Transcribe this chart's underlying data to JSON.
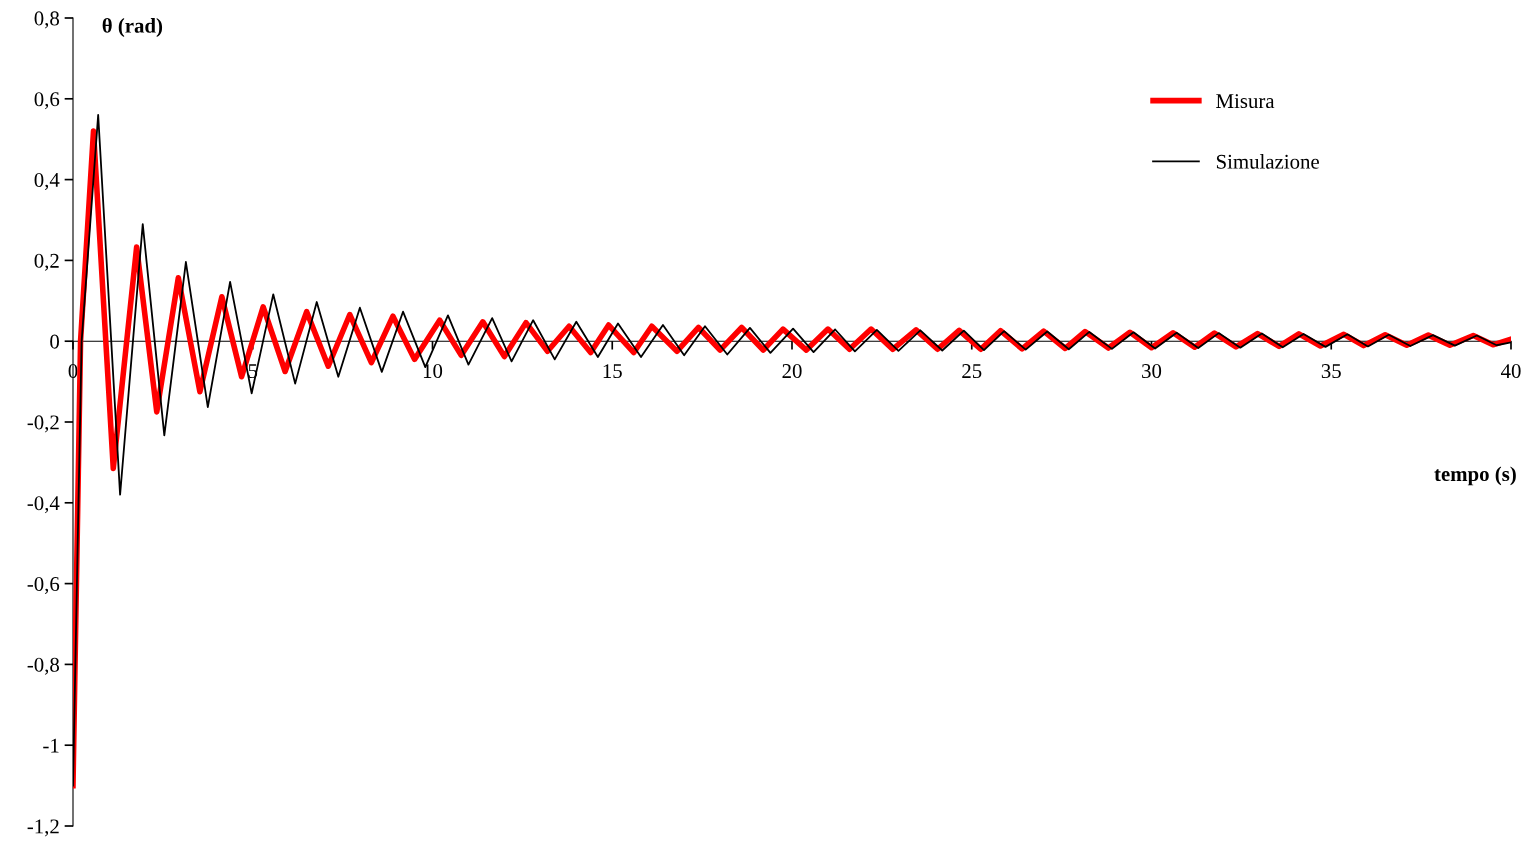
{
  "chart_data": {
    "type": "line",
    "xlabel": "tempo (s)",
    "ylabel": "θ (rad)",
    "xlim": [
      0,
      40
    ],
    "xticks": [
      0,
      5,
      10,
      15,
      20,
      25,
      30,
      35,
      40
    ],
    "ylim": [
      -1.2,
      0.8
    ],
    "yticks": [
      {
        "value": -1.2,
        "label": "-1,2"
      },
      {
        "value": -1,
        "label": "-1"
      },
      {
        "value": -0.8,
        "label": "-0,8"
      },
      {
        "value": -0.6,
        "label": "-0,6"
      },
      {
        "value": -0.4,
        "label": "-0,4"
      },
      {
        "value": -0.2,
        "label": "-0,2"
      },
      0,
      {
        "value": 0.2,
        "label": "0,2"
      },
      {
        "value": 0.4,
        "label": "0,4"
      },
      {
        "value": 0.6,
        "label": "0,6"
      },
      {
        "value": 0.8,
        "label": "0,8"
      }
    ],
    "grid": false,
    "legend": "top right",
    "marker": "none",
    "line_style": "solid",
    "series": [
      {
        "name": "Misura",
        "color": "#ff0000",
        "x": [
          0,
          0.21,
          0.57,
          1.12,
          1.77,
          2.33,
          2.93,
          3.53,
          4.14,
          4.69,
          5.29,
          5.9,
          6.5,
          7.1,
          7.7,
          8.3,
          8.9,
          9.5,
          10.2,
          10.8,
          11.4,
          12.0,
          12.6,
          13.2,
          13.8,
          14.4,
          14.9,
          15.6,
          16.1,
          16.8,
          17.4,
          18.0,
          18.6,
          19.2,
          19.75,
          20.4,
          21.0,
          21.6,
          22.2,
          22.8,
          23.45,
          24.05,
          24.65,
          25.25,
          25.8,
          26.4,
          27.0,
          27.6,
          28.15,
          28.8,
          29.4,
          30.0,
          30.6,
          31.2,
          31.75,
          32.35,
          32.95,
          33.55,
          34.1,
          34.7,
          35.35,
          35.9,
          36.5,
          37.1,
          37.7,
          38.3,
          38.95,
          39.5,
          40
        ],
        "values": [
          -1.1,
          0,
          0.52,
          -0.315,
          0.233,
          -0.175,
          0.157,
          -0.125,
          0.11,
          -0.088,
          0.085,
          -0.075,
          0.073,
          -0.062,
          0.066,
          -0.053,
          0.062,
          -0.045,
          0.052,
          -0.035,
          0.048,
          -0.038,
          0.046,
          -0.025,
          0.037,
          -0.028,
          0.04,
          -0.028,
          0.037,
          -0.025,
          0.034,
          -0.022,
          0.034,
          -0.022,
          0.03,
          -0.022,
          0.03,
          -0.02,
          0.03,
          -0.02,
          0.028,
          -0.02,
          0.027,
          -0.02,
          0.026,
          -0.019,
          0.025,
          -0.018,
          0.024,
          -0.017,
          0.022,
          -0.016,
          0.021,
          -0.015,
          0.02,
          -0.014,
          0.019,
          -0.013,
          0.018,
          -0.012,
          0.017,
          -0.011,
          0.016,
          -0.01,
          0.015,
          -0.01,
          0.014,
          -0.009,
          0.005
        ]
      },
      {
        "name": "Simulazione",
        "color": "#000000",
        "x": [
          0,
          0.24,
          0.7,
          1.31,
          1.94,
          2.54,
          3.14,
          3.75,
          4.37,
          4.97,
          5.57,
          6.18,
          6.78,
          7.38,
          7.98,
          8.59,
          9.18,
          9.8,
          10.43,
          11.0,
          11.66,
          12.2,
          12.8,
          13.4,
          14.0,
          14.6,
          15.16,
          15.8,
          16.41,
          17.0,
          17.58,
          18.2,
          18.83,
          19.4,
          20.03,
          20.6,
          21.2,
          21.75,
          22.36,
          22.96,
          23.57,
          24.18,
          24.78,
          25.34,
          25.9,
          26.5,
          27.1,
          27.7,
          28.27,
          28.9,
          29.5,
          30.1,
          30.7,
          31.3,
          31.87,
          32.47,
          33.07,
          33.65,
          34.23,
          34.84,
          35.45,
          36.02,
          36.6,
          37.2,
          37.83,
          38.44,
          39.05,
          39.6,
          40
        ],
        "values": [
          -1.1,
          0,
          0.56,
          -0.38,
          0.29,
          -0.233,
          0.196,
          -0.163,
          0.147,
          -0.129,
          0.116,
          -0.105,
          0.097,
          -0.088,
          0.083,
          -0.076,
          0.073,
          -0.064,
          0.064,
          -0.058,
          0.057,
          -0.05,
          0.052,
          -0.045,
          0.048,
          -0.039,
          0.044,
          -0.039,
          0.04,
          -0.035,
          0.037,
          -0.033,
          0.033,
          -0.029,
          0.031,
          -0.027,
          0.029,
          -0.025,
          0.028,
          -0.024,
          0.027,
          -0.023,
          0.026,
          -0.022,
          0.025,
          -0.021,
          0.024,
          -0.02,
          0.023,
          -0.019,
          0.022,
          -0.018,
          0.021,
          -0.017,
          0.02,
          -0.016,
          0.019,
          -0.015,
          0.018,
          -0.014,
          0.017,
          -0.013,
          0.016,
          -0.012,
          0.015,
          -0.011,
          0.014,
          -0.01,
          -0.003
        ]
      }
    ]
  }
}
